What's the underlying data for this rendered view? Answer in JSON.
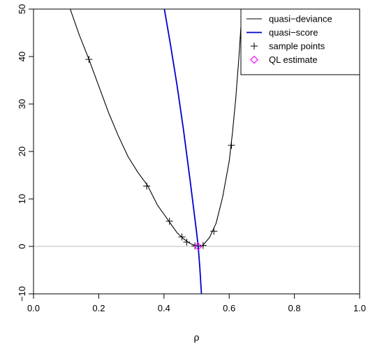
{
  "chart_data": {
    "type": "line",
    "title": "",
    "xlabel": "ρ",
    "ylabel": "",
    "xlim": [
      0.0,
      1.0
    ],
    "ylim": [
      -10,
      50
    ],
    "x_ticks": [
      "0.0",
      "0.2",
      "0.4",
      "0.6",
      "0.8",
      "1.0"
    ],
    "y_ticks": [
      "−10",
      "0",
      "10",
      "20",
      "30",
      "40",
      "50"
    ],
    "grid": false,
    "reference_line": {
      "y": 0,
      "color": "#bebebe"
    },
    "legend_position": "top-right",
    "series": [
      {
        "name": "quasi−deviance",
        "type": "line",
        "color": "#000000",
        "x": [
          0.11,
          0.14,
          0.17,
          0.2,
          0.23,
          0.26,
          0.29,
          0.32,
          0.35,
          0.38,
          0.41,
          0.44,
          0.46,
          0.48,
          0.5,
          0.51,
          0.52,
          0.54,
          0.56,
          0.58,
          0.6,
          0.61,
          0.62,
          0.63,
          0.64
        ],
        "y": [
          50.5,
          44.6,
          39.4,
          33.8,
          28.2,
          23.3,
          18.9,
          15.6,
          12.8,
          8.7,
          5.8,
          2.9,
          1.6,
          0.6,
          0.1,
          0.0,
          0.3,
          1.9,
          4.9,
          10.4,
          17.9,
          23.9,
          31.0,
          40.0,
          50.5
        ]
      },
      {
        "name": "quasi−score",
        "type": "line",
        "color": "#0000cd",
        "x": [
          0.4,
          0.42,
          0.44,
          0.46,
          0.48,
          0.49,
          0.5,
          0.505,
          0.51,
          0.515
        ],
        "y": [
          50.5,
          42.5,
          34.0,
          24.5,
          14.0,
          8.5,
          3.0,
          0.0,
          -4.5,
          -10.0
        ]
      },
      {
        "name": "sample points",
        "type": "scatter",
        "marker": "+",
        "color": "#000000",
        "x": [
          0.17,
          0.347,
          0.417,
          0.455,
          0.47,
          0.495,
          0.52,
          0.553,
          0.607
        ],
        "y": [
          39.4,
          12.7,
          5.3,
          2.0,
          0.9,
          0.1,
          0.2,
          3.2,
          21.3
        ]
      },
      {
        "name": "QL estimate",
        "type": "scatter",
        "marker": "diamond",
        "color": "#ff00ff",
        "x": [
          0.505
        ],
        "y": [
          0.0
        ]
      }
    ]
  }
}
